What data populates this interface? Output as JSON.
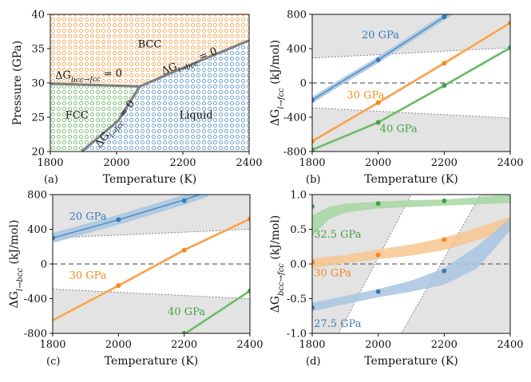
{
  "figure": {
    "description_free": true
  },
  "colors": {
    "blue": "#3b7ab8",
    "blue_light": "#a9c6e0",
    "orange": "#f28a1e",
    "orange_light": "#f8c690",
    "green": "#44a347",
    "green_light": "#a6d6a2",
    "gray_fill": "#e3e3e3",
    "phase_line": "#808080",
    "dashed": "#7d7d7d"
  },
  "chart_data": [
    {
      "id": "a",
      "type": "phase-diagram",
      "panel_label": "(a)",
      "xlabel": "Temperature (K)",
      "ylabel": "Pressure (GPa)",
      "xlim": [
        1800,
        2400
      ],
      "ylim": [
        20,
        40
      ],
      "xticks": [
        "1800",
        "2000",
        "2200",
        "2400"
      ],
      "yticks": [
        "20",
        "25",
        "30",
        "35",
        "40"
      ],
      "x_tick_values": [
        1800,
        2000,
        2200,
        2400
      ],
      "y_tick_values": [
        20,
        25,
        30,
        35,
        40
      ],
      "regions": [
        {
          "name": "BCC",
          "label": "BCC",
          "label_at": [
            2100,
            35.2
          ],
          "color": "orange"
        },
        {
          "name": "FCC",
          "label": "FCC",
          "label_at": [
            1880,
            24.8
          ],
          "color": "green"
        },
        {
          "name": "Liquid",
          "label": "Liquid",
          "label_at": [
            2240,
            24.8
          ],
          "color": "blue"
        }
      ],
      "boundaries": [
        {
          "name": "bcc-fcc",
          "label": "ΔG_bcc→fcc = 0",
          "points": [
            [
              1800,
              29.9
            ],
            [
              2070,
              29.5
            ]
          ]
        },
        {
          "name": "l-fcc",
          "label": "ΔG_l→fcc = 0",
          "points": [
            [
              1895,
              20
            ],
            [
              2005,
              24.5
            ],
            [
              2070,
              29.5
            ]
          ]
        },
        {
          "name": "l-bcc",
          "label": "ΔG_l→bcc = 0",
          "points": [
            [
              2070,
              29.5
            ],
            [
              2230,
              32.8
            ],
            [
              2400,
              36.2
            ]
          ]
        }
      ],
      "annotations": [
        {
          "text": "ΔG",
          "sub": "bcc→fcc",
          "rest": " = 0",
          "at": [
            1815,
            30.6
          ],
          "rotate": -2
        },
        {
          "text": "ΔG",
          "sub": "l→bcc",
          "rest": " = 0",
          "at": [
            2140,
            31.2
          ],
          "rotate": -21
        },
        {
          "text": "ΔG",
          "sub": "l→fcc",
          "rest": " = 0",
          "at": [
            1950,
            20.5
          ],
          "rotate": -52
        }
      ]
    },
    {
      "id": "b",
      "type": "line",
      "panel_label": "(b)",
      "xlabel": "Temperature (K)",
      "ylabel_main": "ΔG",
      "ylabel_sub": "l→fcc",
      "ylabel_rest": " (kJ/mol)",
      "xlim": [
        1800,
        2400
      ],
      "ylim": [
        -800,
        800
      ],
      "xticks": [
        "1800",
        "2000",
        "2200",
        "2400"
      ],
      "yticks": [
        "-800",
        "-400",
        "0",
        "400",
        "800"
      ],
      "x_tick_values": [
        1800,
        2000,
        2200,
        2400
      ],
      "y_tick_values": [
        -800,
        -400,
        0,
        400,
        800
      ],
      "shade_upper": [
        [
          1800,
          290
        ],
        [
          2400,
          410
        ]
      ],
      "shade_lower": [
        [
          1800,
          -290
        ],
        [
          2400,
          -410
        ]
      ],
      "zero_line": 0,
      "series": [
        {
          "name": "20 GPa",
          "label": "20 GPa",
          "color": "blue",
          "label_at": [
            1950,
            520
          ],
          "points": [
            [
              1800,
              -200
            ],
            [
              2000,
              270
            ],
            [
              2200,
              770
            ]
          ],
          "curve": [
            [
              1800,
              -200
            ],
            [
              1900,
              40
            ],
            [
              2000,
              270
            ],
            [
              2100,
              520
            ],
            [
              2200,
              770
            ],
            [
              2220,
              820
            ]
          ],
          "band": 20
        },
        {
          "name": "30 GPa",
          "label": "30 GPa",
          "color": "orange",
          "label_at": [
            1905,
            -180
          ],
          "points": [
            [
              1800,
              -680
            ],
            [
              2000,
              -230
            ],
            [
              2200,
              230
            ],
            [
              2400,
              700
            ]
          ],
          "curve": [
            [
              1800,
              -680
            ],
            [
              2000,
              -230
            ],
            [
              2200,
              230
            ],
            [
              2400,
              700
            ]
          ],
          "band": 6
        },
        {
          "name": "40 GPa",
          "label": "40 GPa",
          "color": "green",
          "label_at": [
            2005,
            -570
          ],
          "points": [
            [
              1800,
              -780
            ],
            [
              2000,
              -460
            ],
            [
              2200,
              -30
            ],
            [
              2400,
              410
            ]
          ],
          "curve": [
            [
              1800,
              -780
            ],
            [
              2000,
              -460
            ],
            [
              2200,
              -30
            ],
            [
              2400,
              410
            ]
          ],
          "band": 6
        }
      ]
    },
    {
      "id": "c",
      "type": "line",
      "panel_label": "(c)",
      "xlabel": "Temperature (K)",
      "ylabel_main": "ΔG",
      "ylabel_sub": "l→bcc",
      "ylabel_rest": " (kJ/mol)",
      "xlim": [
        1800,
        2400
      ],
      "ylim": [
        -800,
        800
      ],
      "xticks": [
        "1800",
        "2000",
        "2200",
        "2400"
      ],
      "yticks": [
        "-800",
        "-400",
        "0",
        "400",
        "800"
      ],
      "x_tick_values": [
        1800,
        2000,
        2200,
        2400
      ],
      "y_tick_values": [
        -800,
        -400,
        0,
        400,
        800
      ],
      "shade_upper": [
        [
          1800,
          300
        ],
        [
          2400,
          400
        ]
      ],
      "shade_lower": [
        [
          1800,
          -290
        ],
        [
          2400,
          -400
        ]
      ],
      "zero_line": 0,
      "series": [
        {
          "name": "20 GPa",
          "label": "20 GPa",
          "color": "blue",
          "label_at": [
            1850,
            510
          ],
          "points": [
            [
              1800,
              300
            ],
            [
              2000,
              510
            ],
            [
              2200,
              730
            ]
          ],
          "curve": [
            [
              1800,
              300
            ],
            [
              2000,
              510
            ],
            [
              2200,
              740
            ],
            [
              2270,
              830
            ]
          ],
          "band": 40
        },
        {
          "name": "30 GPa",
          "label": "30 GPa",
          "color": "orange",
          "label_at": [
            1850,
            -170
          ],
          "points": [
            [
              2000,
              -250
            ],
            [
              2200,
              160
            ],
            [
              2400,
              520
            ]
          ],
          "curve": [
            [
              1800,
              -650
            ],
            [
              2000,
              -250
            ],
            [
              2200,
              160
            ],
            [
              2400,
              520
            ]
          ],
          "band": 6
        },
        {
          "name": "40 GPa",
          "label": "40 GPa",
          "color": "green",
          "label_at": [
            2150,
            -590
          ],
          "points": [
            [
              2200,
              -800
            ],
            [
              2400,
              -310
            ]
          ],
          "curve": [
            [
              2200,
              -810
            ],
            [
              2400,
              -310
            ]
          ],
          "band": 6
        }
      ]
    },
    {
      "id": "d",
      "type": "line",
      "panel_label": "(d)",
      "xlabel": "Temperature (K)",
      "ylabel_main": "ΔG",
      "ylabel_sub": "bcc→fcc",
      "ylabel_rest": " (kJ/mol)",
      "xlim": [
        1800,
        2400
      ],
      "ylim": [
        -1.0,
        1.0
      ],
      "xticks": [
        "1800",
        "2000",
        "2200",
        "2400"
      ],
      "yticks": [
        "-1.0",
        "-0.5",
        "0.0",
        "0.5",
        "1.0"
      ],
      "x_tick_values": [
        1800,
        2000,
        2200,
        2400
      ],
      "y_tick_values": [
        -1.0,
        -0.5,
        0.0,
        0.5,
        1.0
      ],
      "clear_region": [
        [
          1880,
          -1.0
        ],
        [
          2100,
          1.0
        ],
        [
          2310,
          1.0
        ],
        [
          2070,
          -1.0
        ]
      ],
      "zero_line": 0,
      "series": [
        {
          "name": "32.5 GPa",
          "label": "32.5 GPa",
          "color": "green",
          "label_at": [
            1805,
            0.38
          ],
          "points": [
            [
              1800,
              0.83
            ],
            [
              2000,
              0.87
            ],
            [
              2200,
              0.91
            ]
          ],
          "curve": [
            [
              1800,
              0.58
            ],
            [
              1850,
              0.74
            ],
            [
              1900,
              0.81
            ],
            [
              2000,
              0.85
            ],
            [
              2100,
              0.87
            ],
            [
              2200,
              0.89
            ],
            [
              2300,
              0.92
            ],
            [
              2400,
              0.95
            ]
          ],
          "band_lower": [
            [
              1800,
              0.4
            ],
            [
              1850,
              0.64
            ],
            [
              1900,
              0.74
            ],
            [
              2000,
              0.8
            ],
            [
              2100,
              0.82
            ],
            [
              2200,
              0.84
            ],
            [
              2300,
              0.86
            ],
            [
              2400,
              0.88
            ]
          ],
          "band_upper": [
            [
              1800,
              0.7
            ],
            [
              1850,
              0.82
            ],
            [
              1900,
              0.87
            ],
            [
              2000,
              0.9
            ],
            [
              2100,
              0.92
            ],
            [
              2200,
              0.93
            ],
            [
              2300,
              0.96
            ],
            [
              2400,
              1.0
            ]
          ]
        },
        {
          "name": "30 GPa",
          "label": "30 GPa",
          "color": "orange",
          "label_at": [
            1805,
            -0.18
          ],
          "points": [
            [
              1800,
              0.03
            ],
            [
              2000,
              0.13
            ],
            [
              2200,
              0.35
            ]
          ],
          "curve": [
            [
              1800,
              0.0
            ],
            [
              1900,
              0.08
            ],
            [
              2000,
              0.14
            ],
            [
              2100,
              0.2
            ],
            [
              2200,
              0.3
            ],
            [
              2300,
              0.42
            ],
            [
              2400,
              0.6
            ]
          ],
          "band_lower": [
            [
              1800,
              -0.06
            ],
            [
              1900,
              0.01
            ],
            [
              2000,
              0.07
            ],
            [
              2100,
              0.12
            ],
            [
              2200,
              0.2
            ],
            [
              2300,
              0.34
            ],
            [
              2400,
              0.52
            ]
          ],
          "band_upper": [
            [
              1800,
              0.08
            ],
            [
              1900,
              0.13
            ],
            [
              2000,
              0.21
            ],
            [
              2100,
              0.28
            ],
            [
              2200,
              0.38
            ],
            [
              2300,
              0.52
            ],
            [
              2400,
              0.68
            ]
          ]
        },
        {
          "name": "27.5 GPa",
          "label": "27.5 GPa",
          "color": "blue",
          "label_at": [
            1805,
            -0.91
          ],
          "points": [
            [
              1800,
              -0.63
            ],
            [
              2000,
              -0.4
            ],
            [
              2200,
              -0.1
            ]
          ],
          "curve": [
            [
              1800,
              -0.62
            ],
            [
              1900,
              -0.52
            ],
            [
              2000,
              -0.42
            ],
            [
              2100,
              -0.32
            ],
            [
              2200,
              -0.18
            ],
            [
              2300,
              0.12
            ],
            [
              2400,
              0.58
            ]
          ],
          "band_lower": [
            [
              1800,
              -0.68
            ],
            [
              1900,
              -0.58
            ],
            [
              2000,
              -0.48
            ],
            [
              2100,
              -0.4
            ],
            [
              2200,
              -0.3
            ],
            [
              2300,
              -0.06
            ],
            [
              2400,
              0.48
            ]
          ],
          "band_upper": [
            [
              1800,
              -0.56
            ],
            [
              1900,
              -0.46
            ],
            [
              2000,
              -0.36
            ],
            [
              2100,
              -0.24
            ],
            [
              2200,
              -0.06
            ],
            [
              2300,
              0.26
            ],
            [
              2400,
              0.66
            ]
          ]
        }
      ]
    }
  ]
}
